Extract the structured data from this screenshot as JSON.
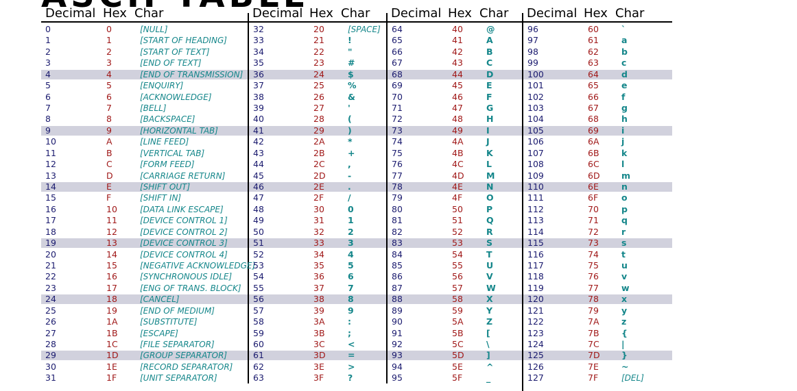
{
  "title": "ASCII TABLE",
  "headers": {
    "decimal": "Decimal",
    "hex": "Hex",
    "char": "Char"
  },
  "colors": {
    "decimal": "#1a1a6e",
    "hex": "#a01818",
    "char": "#14868a",
    "stripe": "#d1d1dd"
  },
  "striped_rows": [
    4,
    9,
    14,
    19,
    24,
    29
  ],
  "columns": [
    {
      "rows": [
        {
          "dec": "0",
          "hex": "0",
          "char": "[NULL]"
        },
        {
          "dec": "1",
          "hex": "1",
          "char": "[START OF HEADING]"
        },
        {
          "dec": "2",
          "hex": "2",
          "char": "[START OF TEXT]"
        },
        {
          "dec": "3",
          "hex": "3",
          "char": "[END OF TEXT]"
        },
        {
          "dec": "4",
          "hex": "4",
          "char": "[END OF TRANSMISSION]"
        },
        {
          "dec": "5",
          "hex": "5",
          "char": "[ENQUIRY]"
        },
        {
          "dec": "6",
          "hex": "6",
          "char": "[ACKNOWLEDGE]"
        },
        {
          "dec": "7",
          "hex": "7",
          "char": "[BELL]"
        },
        {
          "dec": "8",
          "hex": "8",
          "char": "[BACKSPACE]"
        },
        {
          "dec": "9",
          "hex": "9",
          "char": "[HORIZONTAL TAB]"
        },
        {
          "dec": "10",
          "hex": "A",
          "char": "[LINE FEED]"
        },
        {
          "dec": "11",
          "hex": "B",
          "char": "[VERTICAL TAB]"
        },
        {
          "dec": "12",
          "hex": "C",
          "char": "[FORM FEED]"
        },
        {
          "dec": "13",
          "hex": "D",
          "char": "[CARRIAGE RETURN]"
        },
        {
          "dec": "14",
          "hex": "E",
          "char": "[SHIFT OUT]"
        },
        {
          "dec": "15",
          "hex": "F",
          "char": "[SHIFT IN]"
        },
        {
          "dec": "16",
          "hex": "10",
          "char": "[DATA LINK ESCAPE]"
        },
        {
          "dec": "17",
          "hex": "11",
          "char": "[DEVICE CONTROL 1]"
        },
        {
          "dec": "18",
          "hex": "12",
          "char": "[DEVICE CONTROL 2]"
        },
        {
          "dec": "19",
          "hex": "13",
          "char": "[DEVICE CONTROL 3]"
        },
        {
          "dec": "20",
          "hex": "14",
          "char": "[DEVICE CONTROL 4]"
        },
        {
          "dec": "21",
          "hex": "15",
          "char": "[NEGATIVE ACKNOWLEDGE]"
        },
        {
          "dec": "22",
          "hex": "16",
          "char": "[SYNCHRONOUS IDLE]"
        },
        {
          "dec": "23",
          "hex": "17",
          "char": "[ENG OF TRANS. BLOCK]"
        },
        {
          "dec": "24",
          "hex": "18",
          "char": "[CANCEL]"
        },
        {
          "dec": "25",
          "hex": "19",
          "char": "[END OF MEDIUM]"
        },
        {
          "dec": "26",
          "hex": "1A",
          "char": "[SUBSTITUTE]"
        },
        {
          "dec": "27",
          "hex": "1B",
          "char": "[ESCAPE]"
        },
        {
          "dec": "28",
          "hex": "1C",
          "char": "[FILE SEPARATOR]"
        },
        {
          "dec": "29",
          "hex": "1D",
          "char": "[GROUP SEPARATOR]"
        },
        {
          "dec": "30",
          "hex": "1E",
          "char": "[RECORD SEPARATOR]"
        },
        {
          "dec": "31",
          "hex": "1F",
          "char": "[UNIT SEPARATOR]"
        }
      ]
    },
    {
      "rows": [
        {
          "dec": "32",
          "hex": "20",
          "char": "[SPACE]"
        },
        {
          "dec": "33",
          "hex": "21",
          "char": "!"
        },
        {
          "dec": "34",
          "hex": "22",
          "char": "\""
        },
        {
          "dec": "35",
          "hex": "23",
          "char": "#"
        },
        {
          "dec": "36",
          "hex": "24",
          "char": "$"
        },
        {
          "dec": "37",
          "hex": "25",
          "char": "%"
        },
        {
          "dec": "38",
          "hex": "26",
          "char": "&"
        },
        {
          "dec": "39",
          "hex": "27",
          "char": "'"
        },
        {
          "dec": "40",
          "hex": "28",
          "char": "("
        },
        {
          "dec": "41",
          "hex": "29",
          "char": ")"
        },
        {
          "dec": "42",
          "hex": "2A",
          "char": "*"
        },
        {
          "dec": "43",
          "hex": "2B",
          "char": "+"
        },
        {
          "dec": "44",
          "hex": "2C",
          "char": ","
        },
        {
          "dec": "45",
          "hex": "2D",
          "char": "-"
        },
        {
          "dec": "46",
          "hex": "2E",
          "char": "."
        },
        {
          "dec": "47",
          "hex": "2F",
          "char": "/"
        },
        {
          "dec": "48",
          "hex": "30",
          "char": "0"
        },
        {
          "dec": "49",
          "hex": "31",
          "char": "1"
        },
        {
          "dec": "50",
          "hex": "32",
          "char": "2"
        },
        {
          "dec": "51",
          "hex": "33",
          "char": "3"
        },
        {
          "dec": "52",
          "hex": "34",
          "char": "4"
        },
        {
          "dec": "53",
          "hex": "35",
          "char": "5"
        },
        {
          "dec": "54",
          "hex": "36",
          "char": "6"
        },
        {
          "dec": "55",
          "hex": "37",
          "char": "7"
        },
        {
          "dec": "56",
          "hex": "38",
          "char": "8"
        },
        {
          "dec": "57",
          "hex": "39",
          "char": "9"
        },
        {
          "dec": "58",
          "hex": "3A",
          "char": ":"
        },
        {
          "dec": "59",
          "hex": "3B",
          "char": ";"
        },
        {
          "dec": "60",
          "hex": "3C",
          "char": "<"
        },
        {
          "dec": "61",
          "hex": "3D",
          "char": "="
        },
        {
          "dec": "62",
          "hex": "3E",
          "char": ">"
        },
        {
          "dec": "63",
          "hex": "3F",
          "char": "?"
        }
      ]
    },
    {
      "rows": [
        {
          "dec": "64",
          "hex": "40",
          "char": "@"
        },
        {
          "dec": "65",
          "hex": "41",
          "char": "A"
        },
        {
          "dec": "66",
          "hex": "42",
          "char": "B"
        },
        {
          "dec": "67",
          "hex": "43",
          "char": "C"
        },
        {
          "dec": "68",
          "hex": "44",
          "char": "D"
        },
        {
          "dec": "69",
          "hex": "45",
          "char": "E"
        },
        {
          "dec": "70",
          "hex": "46",
          "char": "F"
        },
        {
          "dec": "71",
          "hex": "47",
          "char": "G"
        },
        {
          "dec": "72",
          "hex": "48",
          "char": "H"
        },
        {
          "dec": "73",
          "hex": "49",
          "char": "I"
        },
        {
          "dec": "74",
          "hex": "4A",
          "char": "J"
        },
        {
          "dec": "75",
          "hex": "4B",
          "char": "K"
        },
        {
          "dec": "76",
          "hex": "4C",
          "char": "L"
        },
        {
          "dec": "77",
          "hex": "4D",
          "char": "M"
        },
        {
          "dec": "78",
          "hex": "4E",
          "char": "N"
        },
        {
          "dec": "79",
          "hex": "4F",
          "char": "O"
        },
        {
          "dec": "80",
          "hex": "50",
          "char": "P"
        },
        {
          "dec": "81",
          "hex": "51",
          "char": "Q"
        },
        {
          "dec": "82",
          "hex": "52",
          "char": "R"
        },
        {
          "dec": "83",
          "hex": "53",
          "char": "S"
        },
        {
          "dec": "84",
          "hex": "54",
          "char": "T"
        },
        {
          "dec": "85",
          "hex": "55",
          "char": "U"
        },
        {
          "dec": "86",
          "hex": "56",
          "char": "V"
        },
        {
          "dec": "87",
          "hex": "57",
          "char": "W"
        },
        {
          "dec": "88",
          "hex": "58",
          "char": "X"
        },
        {
          "dec": "89",
          "hex": "59",
          "char": "Y"
        },
        {
          "dec": "90",
          "hex": "5A",
          "char": "Z"
        },
        {
          "dec": "91",
          "hex": "5B",
          "char": "["
        },
        {
          "dec": "92",
          "hex": "5C",
          "char": "\\"
        },
        {
          "dec": "93",
          "hex": "5D",
          "char": "]"
        },
        {
          "dec": "94",
          "hex": "5E",
          "char": "^"
        },
        {
          "dec": "95",
          "hex": "5F",
          "char": "_"
        }
      ]
    },
    {
      "rows": [
        {
          "dec": "96",
          "hex": "60",
          "char": "`"
        },
        {
          "dec": "97",
          "hex": "61",
          "char": "a"
        },
        {
          "dec": "98",
          "hex": "62",
          "char": "b"
        },
        {
          "dec": "99",
          "hex": "63",
          "char": "c"
        },
        {
          "dec": "100",
          "hex": "64",
          "char": "d"
        },
        {
          "dec": "101",
          "hex": "65",
          "char": "e"
        },
        {
          "dec": "102",
          "hex": "66",
          "char": "f"
        },
        {
          "dec": "103",
          "hex": "67",
          "char": "g"
        },
        {
          "dec": "104",
          "hex": "68",
          "char": "h"
        },
        {
          "dec": "105",
          "hex": "69",
          "char": "i"
        },
        {
          "dec": "106",
          "hex": "6A",
          "char": "j"
        },
        {
          "dec": "107",
          "hex": "6B",
          "char": "k"
        },
        {
          "dec": "108",
          "hex": "6C",
          "char": "l"
        },
        {
          "dec": "109",
          "hex": "6D",
          "char": "m"
        },
        {
          "dec": "110",
          "hex": "6E",
          "char": "n"
        },
        {
          "dec": "111",
          "hex": "6F",
          "char": "o"
        },
        {
          "dec": "112",
          "hex": "70",
          "char": "p"
        },
        {
          "dec": "113",
          "hex": "71",
          "char": "q"
        },
        {
          "dec": "114",
          "hex": "72",
          "char": "r"
        },
        {
          "dec": "115",
          "hex": "73",
          "char": "s"
        },
        {
          "dec": "116",
          "hex": "74",
          "char": "t"
        },
        {
          "dec": "117",
          "hex": "75",
          "char": "u"
        },
        {
          "dec": "118",
          "hex": "76",
          "char": "v"
        },
        {
          "dec": "119",
          "hex": "77",
          "char": "w"
        },
        {
          "dec": "120",
          "hex": "78",
          "char": "x"
        },
        {
          "dec": "121",
          "hex": "79",
          "char": "y"
        },
        {
          "dec": "122",
          "hex": "7A",
          "char": "z"
        },
        {
          "dec": "123",
          "hex": "7B",
          "char": "{"
        },
        {
          "dec": "124",
          "hex": "7C",
          "char": "|"
        },
        {
          "dec": "125",
          "hex": "7D",
          "char": "}"
        },
        {
          "dec": "126",
          "hex": "7E",
          "char": "~"
        },
        {
          "dec": "127",
          "hex": "7F",
          "char": "[DEL]"
        }
      ]
    }
  ]
}
